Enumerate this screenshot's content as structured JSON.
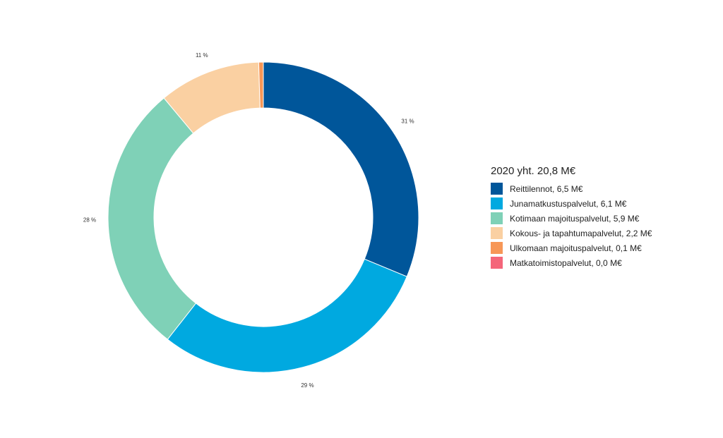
{
  "chart_data": {
    "type": "pie",
    "donut": true,
    "legend_title": "2020 yht. 20,8 M€",
    "legend_position": "right",
    "unit": "M€",
    "slices": [
      {
        "label": "Reittilennot, 6,5 M€",
        "value": 6.5,
        "percent_label": "31 %",
        "color": "#00569a"
      },
      {
        "label": "Junamatkustuspalvelut, 6,1 M€",
        "value": 6.1,
        "percent_label": "29 %",
        "color": "#00a9e0"
      },
      {
        "label": "Kotimaan majoituspalvelut, 5,9 M€",
        "value": 5.9,
        "percent_label": "28 %",
        "color": "#7fd1b7"
      },
      {
        "label": "Kokous- ja tapahtumapalvelut, 2,2 M€",
        "value": 2.2,
        "percent_label": "11 %",
        "color": "#fad0a2"
      },
      {
        "label": "Ulkomaan majoituspalvelut, 0,1 M€",
        "value": 0.1,
        "percent_label": "",
        "color": "#f79757"
      },
      {
        "label": "Matkatoimistopalvelut, 0,0 M€",
        "value": 0.0,
        "percent_label": "",
        "color": "#f4667a"
      }
    ]
  }
}
